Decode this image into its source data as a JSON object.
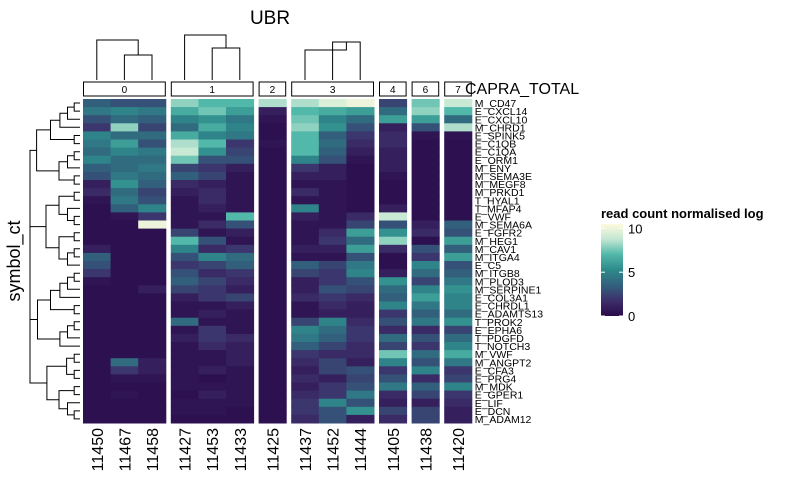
{
  "chart_data": {
    "type": "heatmap",
    "title": "UBR",
    "column_annotation_label": "CAPRA_TOTAL",
    "ylabel": "symbol_ct",
    "legend_title": "read count normalised log",
    "legend_ticks": [
      0,
      5,
      10
    ],
    "color_range": [
      0,
      10.5
    ],
    "palette": [
      "#2a0a4a",
      "#3d2f6b",
      "#325f7c",
      "#2e8a8b",
      "#52b8a9",
      "#bfe6d2",
      "#fffadf"
    ],
    "groups": [
      {
        "label": "0",
        "columns": [
          "11450",
          "11467",
          "11458"
        ]
      },
      {
        "label": "1",
        "columns": [
          "11427",
          "11453",
          "11433"
        ]
      },
      {
        "label": "2",
        "columns": [
          "11425"
        ]
      },
      {
        "label": "3",
        "columns": [
          "11437",
          "11452",
          "11444"
        ]
      },
      {
        "label": "4",
        "columns": [
          "11405"
        ]
      },
      {
        "label": "6",
        "columns": [
          "11438"
        ]
      },
      {
        "label": "7",
        "columns": [
          "11420"
        ]
      }
    ],
    "columns": [
      "11450",
      "11467",
      "11458",
      "11427",
      "11453",
      "11433",
      "11425",
      "11437",
      "11452",
      "11444",
      "11405",
      "11438",
      "11420"
    ],
    "rows": [
      "M_CD47",
      "E_CXCL14",
      "E_CXCL10",
      "M_CHRD1",
      "E_SPINK5",
      "E_C1QB",
      "E_C1QA",
      "E_ORM1",
      "M_ENY",
      "M_SEMA3E",
      "M_MEGF8",
      "M_PRKD1",
      "T_HYAL1",
      "T_MFAP4",
      "E_VWF",
      "M_SEMA6A",
      "E_FGFR2",
      "M_HEG1",
      "M_CAV1",
      "M_ITGA4",
      "E_C5",
      "M_ITGB8",
      "M_PLOD3",
      "M_SERPINE1",
      "E_COL3A1",
      "E_CHRDL1",
      "E_ADAMTS13",
      "T_PROK2",
      "E_EPHA6",
      "T_PDGFD",
      "T_NOTCH3",
      "M_VWF",
      "M_ANGPT2",
      "E_CFA3",
      "E_PRG4",
      "M_MDK",
      "E_GPER1",
      "E_LIF",
      "E_DCN",
      "M_ADAM12"
    ],
    "values": [
      [
        3.5,
        3.0,
        3.0,
        8.0,
        7.0,
        7.0,
        8.5,
        8.5,
        9.5,
        10.0,
        2.5,
        7.5,
        9.0
      ],
      [
        4.5,
        5.0,
        4.5,
        6.5,
        7.5,
        6.0,
        1.0,
        7.0,
        6.5,
        6.0,
        4.0,
        8.0,
        7.0
      ],
      [
        3.0,
        4.0,
        3.5,
        5.0,
        5.5,
        4.5,
        0.5,
        7.5,
        5.0,
        4.0,
        6.0,
        6.0,
        4.0
      ],
      [
        2.0,
        8.0,
        2.5,
        4.0,
        6.5,
        5.0,
        0.3,
        8.0,
        5.5,
        3.0,
        1.0,
        3.0,
        8.5
      ],
      [
        5.0,
        4.0,
        4.0,
        6.5,
        5.0,
        4.5,
        0.3,
        7.0,
        3.5,
        2.0,
        1.5,
        0.5,
        0.5
      ],
      [
        4.5,
        6.0,
        3.0,
        8.5,
        7.0,
        2.0,
        0.5,
        7.0,
        4.0,
        1.5,
        1.5,
        0.3,
        0.3
      ],
      [
        4.0,
        5.0,
        4.5,
        9.0,
        5.5,
        2.5,
        0.3,
        7.0,
        3.5,
        1.0,
        1.0,
        0.3,
        0.3
      ],
      [
        5.0,
        4.0,
        4.0,
        7.5,
        3.0,
        3.0,
        0.3,
        5.0,
        3.0,
        0.5,
        1.0,
        0.3,
        0.3
      ],
      [
        3.5,
        4.0,
        4.5,
        2.5,
        2.0,
        1.0,
        0.3,
        2.0,
        1.0,
        0.3,
        1.0,
        0.3,
        0.3
      ],
      [
        3.0,
        4.5,
        4.0,
        3.5,
        2.5,
        0.5,
        0.3,
        1.0,
        1.0,
        0.3,
        0.5,
        0.3,
        0.3
      ],
      [
        1.0,
        5.5,
        3.5,
        1.5,
        1.0,
        0.5,
        0.3,
        0.5,
        0.5,
        0.3,
        0.3,
        0.3,
        0.3
      ],
      [
        1.5,
        4.0,
        2.5,
        1.0,
        1.5,
        0.5,
        0.3,
        1.5,
        0.5,
        0.3,
        0.3,
        0.3,
        0.3
      ],
      [
        0.5,
        4.5,
        3.0,
        0.5,
        1.5,
        0.5,
        0.3,
        0.5,
        0.5,
        0.3,
        0.3,
        0.3,
        0.3
      ],
      [
        0.3,
        3.5,
        5.0,
        0.5,
        1.0,
        0.5,
        0.3,
        5.0,
        0.5,
        0.3,
        1.0,
        0.3,
        0.3
      ],
      [
        0.3,
        0.5,
        2.0,
        0.5,
        0.5,
        7.0,
        0.3,
        1.0,
        0.5,
        1.5,
        9.0,
        0.3,
        0.3
      ],
      [
        0.3,
        0.3,
        10.0,
        0.5,
        1.5,
        3.0,
        0.3,
        0.5,
        0.5,
        2.5,
        3.0,
        1.0,
        3.5
      ],
      [
        0.3,
        0.3,
        0.3,
        2.5,
        0.5,
        1.0,
        0.3,
        0.5,
        1.5,
        6.0,
        5.5,
        1.5,
        3.0
      ],
      [
        0.3,
        0.3,
        0.3,
        7.0,
        3.0,
        0.5,
        0.3,
        0.5,
        2.0,
        4.0,
        8.0,
        0.3,
        6.0
      ],
      [
        1.0,
        0.3,
        0.3,
        5.0,
        1.5,
        2.0,
        0.3,
        1.0,
        1.0,
        6.0,
        1.5,
        3.0,
        3.5
      ],
      [
        3.5,
        0.3,
        0.3,
        3.0,
        5.0,
        4.0,
        0.3,
        0.5,
        0.5,
        3.0,
        0.3,
        2.0,
        6.0
      ],
      [
        3.0,
        0.3,
        0.3,
        2.0,
        2.5,
        3.5,
        0.3,
        3.5,
        2.5,
        4.5,
        0.3,
        5.0,
        3.0
      ],
      [
        2.0,
        0.3,
        0.3,
        3.0,
        1.5,
        2.0,
        0.3,
        2.5,
        2.0,
        5.0,
        1.0,
        4.0,
        3.5
      ],
      [
        0.5,
        0.3,
        0.3,
        3.5,
        2.5,
        1.5,
        0.3,
        1.0,
        2.0,
        3.0,
        5.5,
        2.5,
        4.5
      ],
      [
        0.3,
        0.3,
        1.0,
        2.5,
        2.0,
        1.0,
        0.3,
        1.0,
        3.0,
        2.5,
        4.0,
        5.0,
        5.5
      ],
      [
        0.3,
        0.3,
        0.3,
        1.0,
        2.0,
        2.5,
        0.3,
        1.5,
        2.0,
        1.5,
        3.5,
        6.0,
        5.0
      ],
      [
        0.3,
        0.3,
        0.3,
        0.5,
        0.5,
        1.0,
        0.3,
        0.5,
        1.5,
        1.0,
        5.0,
        4.5,
        5.0
      ],
      [
        0.3,
        0.3,
        0.3,
        0.5,
        1.0,
        0.5,
        0.3,
        0.5,
        1.0,
        1.0,
        2.0,
        3.5,
        4.0
      ],
      [
        0.3,
        0.3,
        0.3,
        4.0,
        0.5,
        0.5,
        0.3,
        2.5,
        5.0,
        1.5,
        3.0,
        4.5,
        5.5
      ],
      [
        0.3,
        0.3,
        0.3,
        0.5,
        2.0,
        0.5,
        0.3,
        5.0,
        4.0,
        2.0,
        1.5,
        1.5,
        2.5
      ],
      [
        0.3,
        0.3,
        0.3,
        1.0,
        2.0,
        1.5,
        0.3,
        4.5,
        3.5,
        2.0,
        4.0,
        3.0,
        4.0
      ],
      [
        0.3,
        0.3,
        0.3,
        0.5,
        1.5,
        1.0,
        0.3,
        3.5,
        2.5,
        1.5,
        2.5,
        2.0,
        5.0
      ],
      [
        0.3,
        0.3,
        0.3,
        0.5,
        0.5,
        1.0,
        0.3,
        2.0,
        1.5,
        1.5,
        7.5,
        4.0,
        6.5
      ],
      [
        0.3,
        4.0,
        1.0,
        0.5,
        0.5,
        1.0,
        0.3,
        1.5,
        2.5,
        1.0,
        5.0,
        3.0,
        4.5
      ],
      [
        0.3,
        2.0,
        1.0,
        0.5,
        1.0,
        0.5,
        0.3,
        1.0,
        2.5,
        3.0,
        2.0,
        5.0,
        2.0
      ],
      [
        0.3,
        0.5,
        0.5,
        0.5,
        0.3,
        0.5,
        0.3,
        1.5,
        1.0,
        2.5,
        3.0,
        1.5,
        2.5
      ],
      [
        0.3,
        0.3,
        0.3,
        0.5,
        0.5,
        0.5,
        0.3,
        1.0,
        2.0,
        3.0,
        4.5,
        3.5,
        5.0
      ],
      [
        0.3,
        0.5,
        0.3,
        0.3,
        1.0,
        0.5,
        0.3,
        1.5,
        2.0,
        4.5,
        1.5,
        2.5,
        2.0
      ],
      [
        0.3,
        0.3,
        0.3,
        0.5,
        0.5,
        0.5,
        0.3,
        2.0,
        5.0,
        3.0,
        1.0,
        1.0,
        1.5
      ],
      [
        0.3,
        0.3,
        0.3,
        0.5,
        0.5,
        0.3,
        0.3,
        2.0,
        3.0,
        5.5,
        2.5,
        2.5,
        1.0
      ],
      [
        0.3,
        0.3,
        0.3,
        0.3,
        0.3,
        0.3,
        0.3,
        1.5,
        3.0,
        1.0,
        1.5,
        2.5,
        1.0
      ]
    ]
  }
}
